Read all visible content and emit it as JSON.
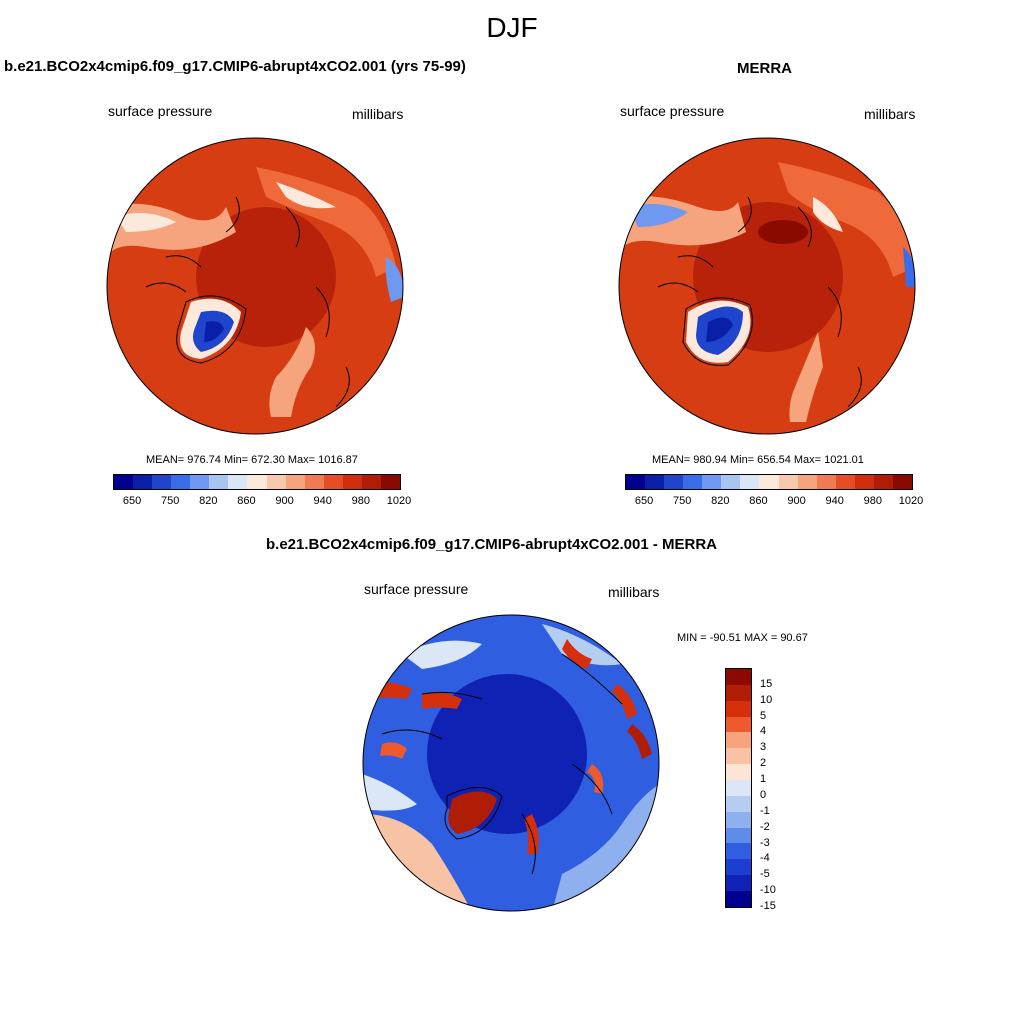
{
  "season": "DJF",
  "top_left": {
    "title": "b.e21.BCO2x4cmip6.f09_g17.CMIP6-abrupt4xCO2.001 (yrs 75-99)",
    "left_label": "surface pressure",
    "right_label": "millibars",
    "stats": "MEAN= 976.74  Min= 672.30  Max= 1016.87"
  },
  "top_right": {
    "title": "MERRA",
    "left_label": "surface pressure",
    "right_label": "millibars",
    "stats": "MEAN= 980.94  Min= 656.54  Max= 1021.01"
  },
  "bottom": {
    "title": "b.e21.BCO2x4cmip6.f09_g17.CMIP6-abrupt4xCO2.001 - MERRA",
    "left_label": "surface pressure",
    "right_label": "millibars",
    "stats": "MIN = -90.51 MAX =  90.67"
  },
  "abs_colorbar": {
    "colors": [
      "#00008f",
      "#0a1fa8",
      "#1f45cc",
      "#3a6ee8",
      "#6f98f0",
      "#a9c4f2",
      "#d9e6f7",
      "#fde9dc",
      "#f9c9ad",
      "#f5a47d",
      "#f07a52",
      "#e44d26",
      "#cf2e0c",
      "#b01d06",
      "#8b0a00"
    ],
    "ticks": [
      "650",
      "750",
      "820",
      "860",
      "900",
      "940",
      "980",
      "1020"
    ]
  },
  "diff_colorbar": {
    "colors": [
      "#8b0a00",
      "#b01d06",
      "#d52f0c",
      "#ee5a2e",
      "#f5a47d",
      "#f8c3a4",
      "#fde5d5",
      "#dbe7f7",
      "#b6cdf2",
      "#8fb0ee",
      "#5e8ce8",
      "#2f5fe0",
      "#1c3fcf",
      "#0f22b4",
      "#00008f"
    ],
    "ticks": [
      "15",
      "10",
      "5",
      "4",
      "3",
      "2",
      "1",
      "0",
      "-1",
      "-2",
      "-3",
      "-4",
      "-5",
      "-10",
      "-15"
    ]
  }
}
